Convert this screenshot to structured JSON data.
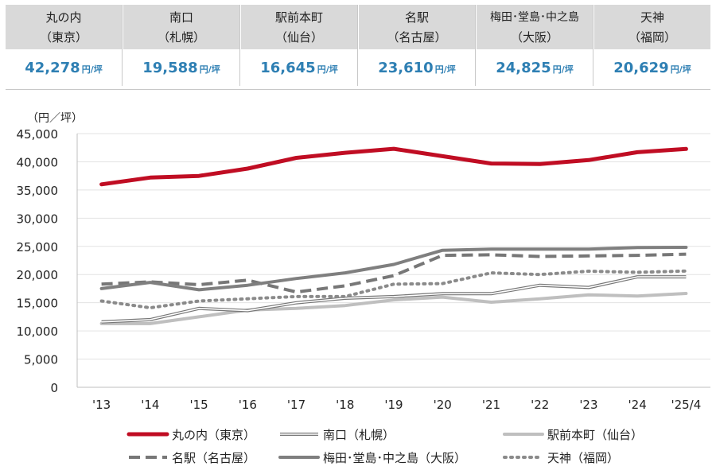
{
  "summary": [
    {
      "line1": "丸の内",
      "line2": "（東京）",
      "value": "42,278",
      "unit": "円/坪"
    },
    {
      "line1": "南口",
      "line2": "（札幌）",
      "value": "19,588",
      "unit": "円/坪"
    },
    {
      "line1": "駅前本町",
      "line2": "（仙台）",
      "value": "16,645",
      "unit": "円/坪"
    },
    {
      "line1": "名駅",
      "line2": "（名古屋）",
      "value": "23,610",
      "unit": "円/坪"
    },
    {
      "line1": "梅田･堂島･中之島",
      "line2": "（大阪）",
      "value": "24,825",
      "unit": "円/坪"
    },
    {
      "line1": "天神",
      "line2": "（福岡）",
      "value": "20,629",
      "unit": "円/坪"
    }
  ],
  "chart_data": {
    "type": "line",
    "ylabel": "（円／坪）",
    "ylim": [
      0,
      45000
    ],
    "yticks": [
      0,
      5000,
      10000,
      15000,
      20000,
      25000,
      30000,
      35000,
      40000,
      45000
    ],
    "ytick_labels": [
      "0",
      "5,000",
      "10,000",
      "15,000",
      "20,000",
      "25,000",
      "30,000",
      "35,000",
      "40,000",
      "45,000"
    ],
    "categories": [
      "'13",
      "'14",
      "'15",
      "'16",
      "'17",
      "'18",
      "'19",
      "'20",
      "'21",
      "'22",
      "'23",
      "'24",
      "'25/4"
    ],
    "series": [
      {
        "name": "丸の内（東京）",
        "style": "thick",
        "color": "#c00d23",
        "values": [
          36000,
          37200,
          37500,
          38800,
          40700,
          41600,
          42300,
          41000,
          39700,
          39600,
          40300,
          41700,
          42278
        ]
      },
      {
        "name": "南口（札幌）",
        "style": "double",
        "color": "#777777",
        "values": [
          11600,
          12000,
          14000,
          13600,
          15000,
          15800,
          16100,
          16600,
          16600,
          18100,
          17700,
          19588,
          19588
        ]
      },
      {
        "name": "駅前本町（仙台）",
        "style": "light",
        "color": "#bfbfbf",
        "values": [
          11300,
          11300,
          12500,
          13700,
          14000,
          14500,
          15500,
          16000,
          15100,
          15700,
          16400,
          16200,
          16645
        ]
      },
      {
        "name": "名駅（名古屋）",
        "style": "dashed",
        "color": "#777777",
        "values": [
          18300,
          18700,
          18200,
          19000,
          16900,
          18000,
          19800,
          23400,
          23500,
          23200,
          23300,
          23400,
          23610
        ]
      },
      {
        "name": "梅田･堂島･中之島（大阪）",
        "style": "solid",
        "color": "#7f7f7f",
        "values": [
          17500,
          18600,
          17300,
          18100,
          19300,
          20300,
          21800,
          24300,
          24500,
          24500,
          24500,
          24800,
          24825
        ]
      },
      {
        "name": "天神（福岡）",
        "style": "dotted",
        "color": "#8a8a8a",
        "values": [
          15300,
          14100,
          15300,
          15700,
          16100,
          16100,
          18300,
          18400,
          20300,
          20000,
          20600,
          20400,
          20629
        ]
      }
    ]
  }
}
